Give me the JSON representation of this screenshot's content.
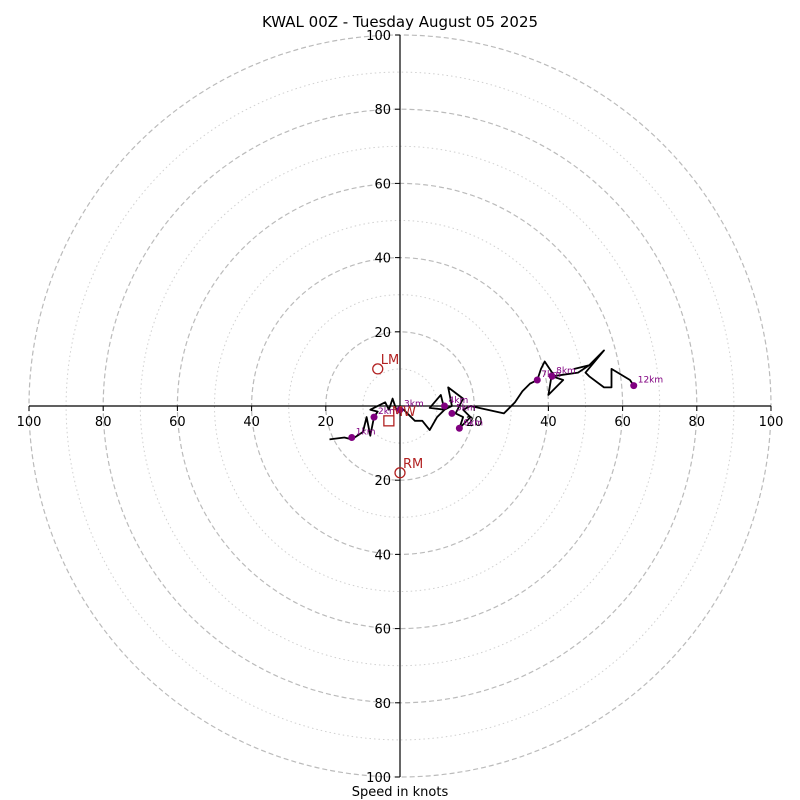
{
  "chart_data": {
    "type": "hodograph",
    "title": "KWAL 00Z - Tuesday August 05 2025",
    "xlabel": "Speed in knots",
    "xlim": [
      -100,
      100
    ],
    "ylim": [
      -100,
      100
    ],
    "x_ticks": [
      "100",
      "80",
      "60",
      "40",
      "20",
      "",
      "20",
      "40",
      "60",
      "80",
      "100"
    ],
    "y_ticks": [
      "100",
      "80",
      "60",
      "40",
      "20",
      "20",
      "40",
      "60",
      "80",
      "100"
    ],
    "ring_major_speeds": [
      20,
      40,
      60,
      80,
      100
    ],
    "ring_minor_speeds": [
      10,
      30,
      50,
      70,
      90
    ],
    "colors": {
      "hodograph_line": "#000000",
      "height_marker": "#800080",
      "motion_marker": "#b22222",
      "ring": "#bbbbbb"
    },
    "hodograph": [
      [
        -19,
        -9
      ],
      [
        -15,
        -8.5
      ],
      [
        -13,
        -9
      ],
      [
        -10,
        -7
      ],
      [
        -9,
        -3
      ],
      [
        -8,
        -8
      ],
      [
        -7,
        -3
      ],
      [
        -6,
        -1.5
      ],
      [
        -8,
        -1
      ],
      [
        -4,
        1
      ],
      [
        -3,
        -1
      ],
      [
        -2,
        2
      ],
      [
        -1,
        -1
      ],
      [
        1,
        -1
      ],
      [
        4,
        -4
      ],
      [
        6,
        -4
      ],
      [
        8,
        -6.5
      ],
      [
        10,
        -3
      ],
      [
        12,
        -1
      ],
      [
        8,
        -0.5
      ],
      [
        11,
        3
      ],
      [
        12,
        -1
      ],
      [
        14,
        0
      ],
      [
        13,
        5
      ],
      [
        17,
        2
      ],
      [
        15,
        -2
      ],
      [
        17,
        -3
      ],
      [
        16,
        -6
      ],
      [
        19,
        -3
      ],
      [
        17,
        -1
      ],
      [
        19,
        0
      ],
      [
        28,
        -2
      ],
      [
        31,
        1
      ],
      [
        33,
        4
      ],
      [
        35,
        6
      ],
      [
        37,
        7
      ],
      [
        38,
        10
      ],
      [
        39,
        12
      ],
      [
        41,
        9
      ],
      [
        40,
        3
      ],
      [
        44,
        7
      ],
      [
        41,
        8
      ],
      [
        48,
        9
      ],
      [
        51,
        11
      ],
      [
        47,
        10
      ],
      [
        51,
        11
      ],
      [
        55,
        15
      ],
      [
        50,
        9
      ],
      [
        51,
        8
      ],
      [
        55,
        5
      ],
      [
        57,
        5
      ],
      [
        57,
        10
      ],
      [
        62,
        7
      ],
      [
        63,
        5.5
      ]
    ],
    "height_markers": [
      {
        "label": "1km",
        "x": -13,
        "y": -8.5
      },
      {
        "label": "2km",
        "x": -7,
        "y": -3
      },
      {
        "label": "3km",
        "x": 0,
        "y": -1
      },
      {
        "label": "4km",
        "x": 12,
        "y": 0
      },
      {
        "label": "5km",
        "x": 14,
        "y": -2
      },
      {
        "label": "6km",
        "x": 16,
        "y": -6
      },
      {
        "label": "7km",
        "x": 37,
        "y": 7
      },
      {
        "label": "8km",
        "x": 41,
        "y": 8
      },
      {
        "label": "12km",
        "x": 63,
        "y": 5.5
      }
    ],
    "storm_motions": [
      {
        "label": "LM",
        "x": -6,
        "y": 10,
        "shape": "circle"
      },
      {
        "label": "RM",
        "x": 0,
        "y": -18,
        "shape": "circle"
      },
      {
        "label": "MW",
        "x": -3,
        "y": -4,
        "shape": "square"
      }
    ]
  }
}
